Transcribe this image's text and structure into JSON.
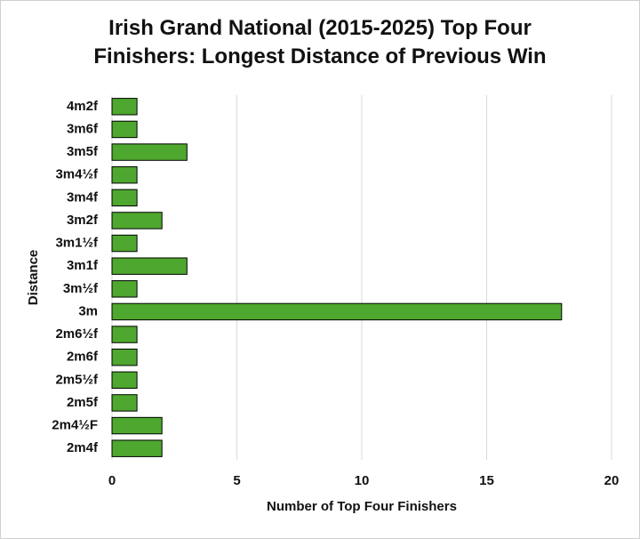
{
  "chart_data": {
    "type": "bar",
    "orientation": "horizontal",
    "title": "Irish Grand National (2015-2025) Top Four Finishers: Longest Distance of Previous Win",
    "x_label": "Number of Top Four Finishers",
    "y_label": "Distance",
    "categories": [
      "4m2f",
      "3m6f",
      "3m5f",
      "3m4½f",
      "3m4f",
      "3m2f",
      "3m1½f",
      "3m1f",
      "3m½f",
      "3m",
      "2m6½f",
      "2m6f",
      "2m5½f",
      "2m5f",
      "2m4½F",
      "2m4f"
    ],
    "values": [
      1,
      1,
      3,
      1,
      1,
      2,
      1,
      3,
      1,
      18,
      1,
      1,
      1,
      1,
      2,
      2
    ],
    "color": "#4ea72e",
    "xlim": [
      0,
      20
    ],
    "xticks": [
      0,
      5,
      10,
      15,
      20
    ],
    "grid": true
  }
}
